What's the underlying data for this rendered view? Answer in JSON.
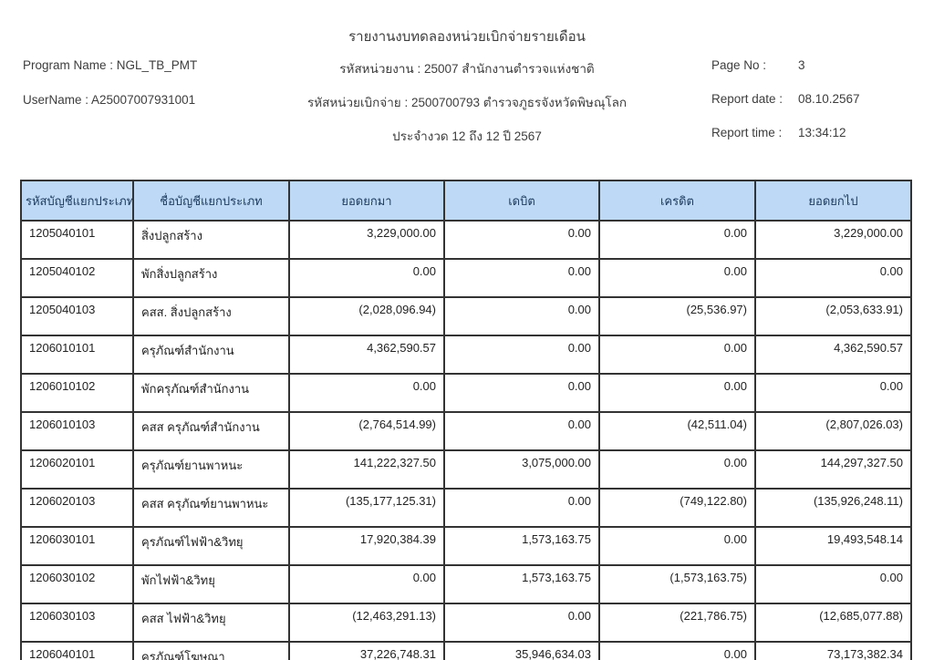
{
  "title": "รายงานงบทดลองหน่วยเบิกจ่ายรายเดือน",
  "meta": {
    "program": {
      "label": "Program Name : ",
      "value": "NGL_TB_PMT"
    },
    "username": {
      "label": "UserName : ",
      "value": "A25007007931001"
    },
    "agency": {
      "label": "รหัสหน่วยงาน : ",
      "value": "25007 สำนักงานตำรวจแห่งชาติ"
    },
    "disbursing_unit": {
      "label": "รหัสหน่วยเบิกจ่าย : ",
      "value": "2500700793 ตำรวจภูธรจังหวัดพิษณุโลก"
    },
    "period": "ประจำงวด 12 ถึง 12 ปี 2567",
    "page_no": {
      "label": "Page No :",
      "value": "3"
    },
    "report_date": {
      "label": "Report date :",
      "value": "08.10.2567"
    },
    "report_time": {
      "label": "Report time :",
      "value": "13:34:12"
    }
  },
  "table": {
    "columns": [
      "รหัสบัญชีแยกประเภท",
      "ชื่อบัญชีแยกประเภท",
      "ยอดยกมา",
      "เดบิต",
      "เครดิต",
      "ยอดยกไป"
    ],
    "rows": [
      [
        "1205040101",
        "สิ่งปลูกสร้าง",
        "3,229,000.00",
        "0.00",
        "0.00",
        "3,229,000.00"
      ],
      [
        "1205040102",
        "พักสิ่งปลูกสร้าง",
        "0.00",
        "0.00",
        "0.00",
        "0.00"
      ],
      [
        "1205040103",
        "คสส. สิ่งปลูกสร้าง",
        "(2,028,096.94)",
        "0.00",
        "(25,536.97)",
        "(2,053,633.91)"
      ],
      [
        "1206010101",
        "ครุภัณฑ์สำนักงาน",
        "4,362,590.57",
        "0.00",
        "0.00",
        "4,362,590.57"
      ],
      [
        "1206010102",
        "พักครุภัณฑ์สำนักงาน",
        "0.00",
        "0.00",
        "0.00",
        "0.00"
      ],
      [
        "1206010103",
        "คสส ครุภัณฑ์สำนักงาน",
        "(2,764,514.99)",
        "0.00",
        "(42,511.04)",
        "(2,807,026.03)"
      ],
      [
        "1206020101",
        "ครุภัณฑ์ยานพาหนะ",
        "141,222,327.50",
        "3,075,000.00",
        "0.00",
        "144,297,327.50"
      ],
      [
        "1206020103",
        "คสส ครุภัณฑ์ยานพาหนะ",
        "(135,177,125.31)",
        "0.00",
        "(749,122.80)",
        "(135,926,248.11)"
      ],
      [
        "1206030101",
        "คุรภัณฑ์ไฟฟ้า&วิทยุ",
        "17,920,384.39",
        "1,573,163.75",
        "0.00",
        "19,493,548.14"
      ],
      [
        "1206030102",
        "พักไฟฟ้า&วิทยุ",
        "0.00",
        "1,573,163.75",
        "(1,573,163.75)",
        "0.00"
      ],
      [
        "1206030103",
        "คสส ไฟฟ้า&วิทยุ",
        "(12,463,291.13)",
        "0.00",
        "(221,786.75)",
        "(12,685,077.88)"
      ],
      [
        "1206040101",
        "ครุภัณฑ์โฆษณา",
        "37,226,748.31",
        "35,946,634.03",
        "0.00",
        "73,173,382.34"
      ]
    ]
  },
  "colors": {
    "header_bg": "#bdd9f5",
    "header_text": "#1e3a5f",
    "border": "#333333"
  }
}
